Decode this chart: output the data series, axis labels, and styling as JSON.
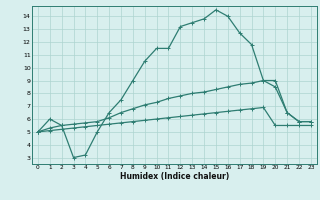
{
  "title": "",
  "xlabel": "Humidex (Indice chaleur)",
  "xlim": [
    -0.5,
    23.5
  ],
  "ylim": [
    2.5,
    14.8
  ],
  "yticks": [
    3,
    4,
    5,
    6,
    7,
    8,
    9,
    10,
    11,
    12,
    13,
    14
  ],
  "xticks": [
    0,
    1,
    2,
    3,
    4,
    5,
    6,
    7,
    8,
    9,
    10,
    11,
    12,
    13,
    14,
    15,
    16,
    17,
    18,
    19,
    20,
    21,
    22,
    23
  ],
  "bg_color": "#d8efee",
  "grid_color": "#aed4d0",
  "line_color": "#2e7d72",
  "line1_x": [
    0,
    1,
    2,
    3,
    4,
    5,
    6,
    7,
    8,
    9,
    10,
    11,
    12,
    13,
    14,
    15,
    16,
    17,
    18,
    19,
    20,
    21,
    22,
    23
  ],
  "line1_y": [
    5.0,
    6.0,
    5.5,
    3.0,
    3.2,
    5.0,
    6.5,
    7.5,
    9.0,
    10.5,
    11.5,
    11.5,
    13.2,
    13.5,
    13.8,
    14.5,
    14.0,
    12.7,
    11.8,
    9.0,
    9.0,
    6.5,
    5.8,
    5.8
  ],
  "line2_x": [
    0,
    1,
    2,
    3,
    4,
    5,
    6,
    7,
    8,
    9,
    10,
    11,
    12,
    13,
    14,
    15,
    16,
    17,
    18,
    19,
    20,
    21,
    22,
    23
  ],
  "line2_y": [
    5.0,
    5.3,
    5.5,
    5.6,
    5.7,
    5.8,
    6.1,
    6.5,
    6.8,
    7.1,
    7.3,
    7.6,
    7.8,
    8.0,
    8.1,
    8.3,
    8.5,
    8.7,
    8.8,
    9.0,
    8.5,
    6.5,
    5.8,
    5.8
  ],
  "line3_x": [
    0,
    1,
    2,
    3,
    4,
    5,
    6,
    7,
    8,
    9,
    10,
    11,
    12,
    13,
    14,
    15,
    16,
    17,
    18,
    19,
    20,
    21,
    22,
    23
  ],
  "line3_y": [
    5.0,
    5.1,
    5.2,
    5.3,
    5.4,
    5.5,
    5.6,
    5.7,
    5.8,
    5.9,
    6.0,
    6.1,
    6.2,
    6.3,
    6.4,
    6.5,
    6.6,
    6.7,
    6.8,
    6.9,
    5.5,
    5.5,
    5.5,
    5.5
  ]
}
